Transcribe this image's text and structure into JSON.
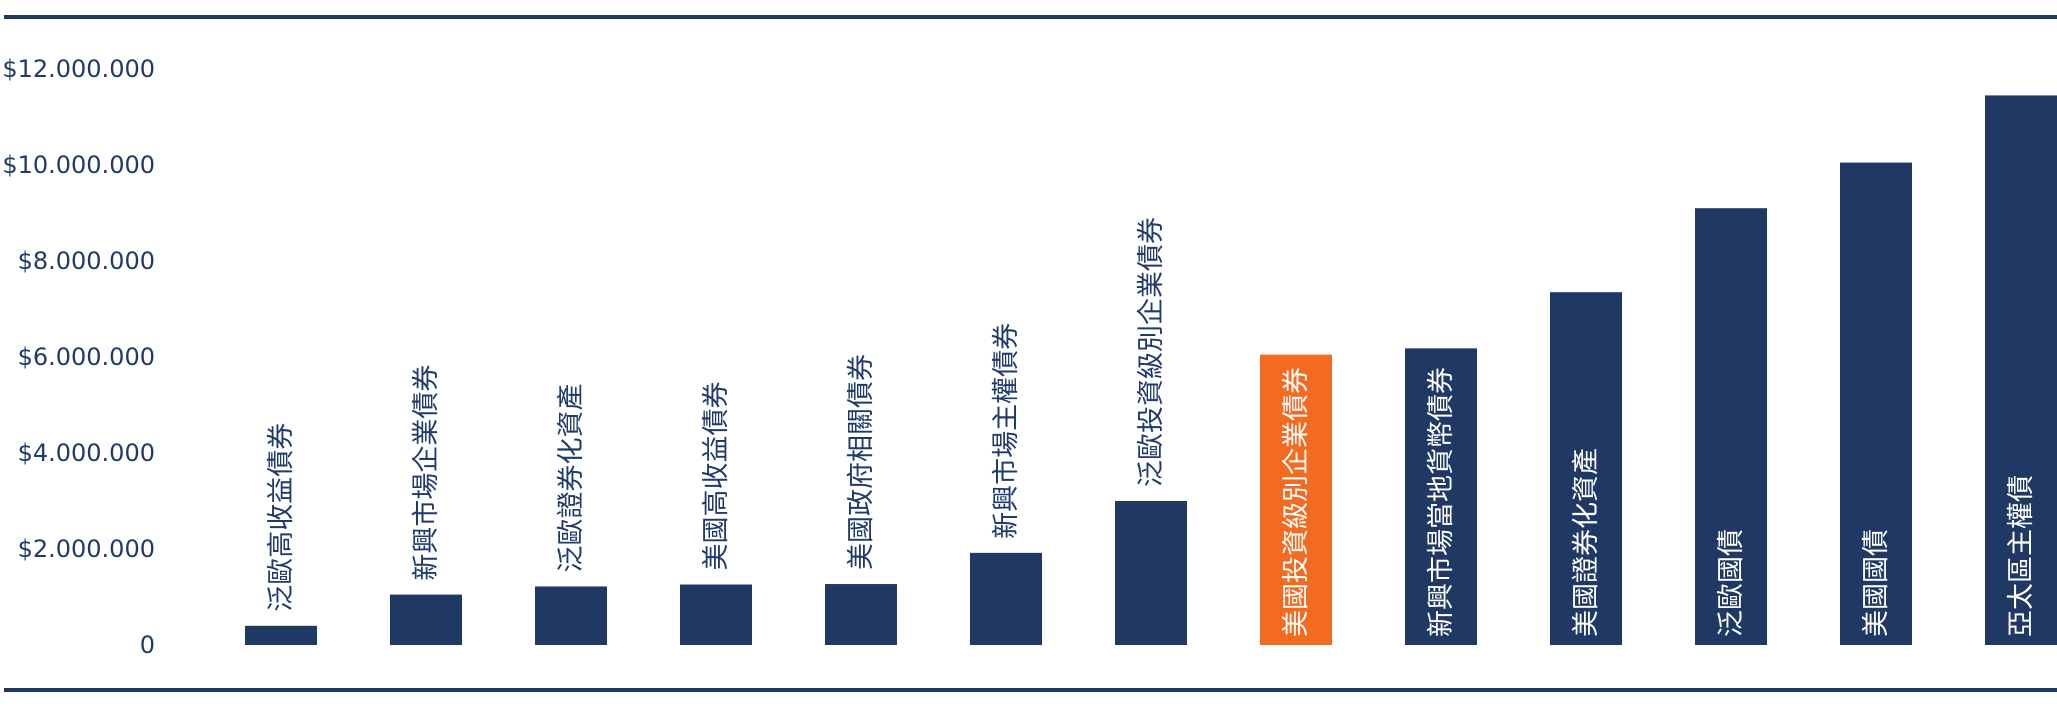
{
  "chart_data": {
    "type": "bar",
    "title": "",
    "xlabel": "",
    "ylabel": "",
    "ylim": [
      0,
      12000000
    ],
    "y_ticks": [
      {
        "value": 0,
        "label": "0"
      },
      {
        "value": 2000000,
        "label": "$2.000.000"
      },
      {
        "value": 4000000,
        "label": "$4.000.000"
      },
      {
        "value": 6000000,
        "label": "$6.000.000"
      },
      {
        "value": 8000000,
        "label": "$8.000.000"
      },
      {
        "value": 10000000,
        "label": "$10.000.000"
      },
      {
        "value": 12000000,
        "label": "$12.000.000"
      }
    ],
    "grid": false,
    "colors": {
      "default": "#1f3864",
      "highlight": "#f26b21",
      "axis_text": "#1f3a6b",
      "rule": "#1f3864",
      "inside_label": "#ffffff"
    },
    "categories": [
      "泛歐高收益債券",
      "新興市場企業債券",
      "泛歐證券化資產",
      "美國高收益債券",
      "美國政府相關債券",
      "新興市場主權債券",
      "泛歐投資級別企業債券",
      "美國投資級別企業債券",
      "新興市場當地貨幣債券",
      "美國證券化資產",
      "泛歐國債",
      "美國國債",
      "亞太區主權債"
    ],
    "values": [
      400000,
      1050000,
      1220000,
      1260000,
      1270000,
      1920000,
      3000000,
      6050000,
      6180000,
      7350000,
      9100000,
      10050000,
      11450000
    ],
    "highlight_index": 7
  }
}
